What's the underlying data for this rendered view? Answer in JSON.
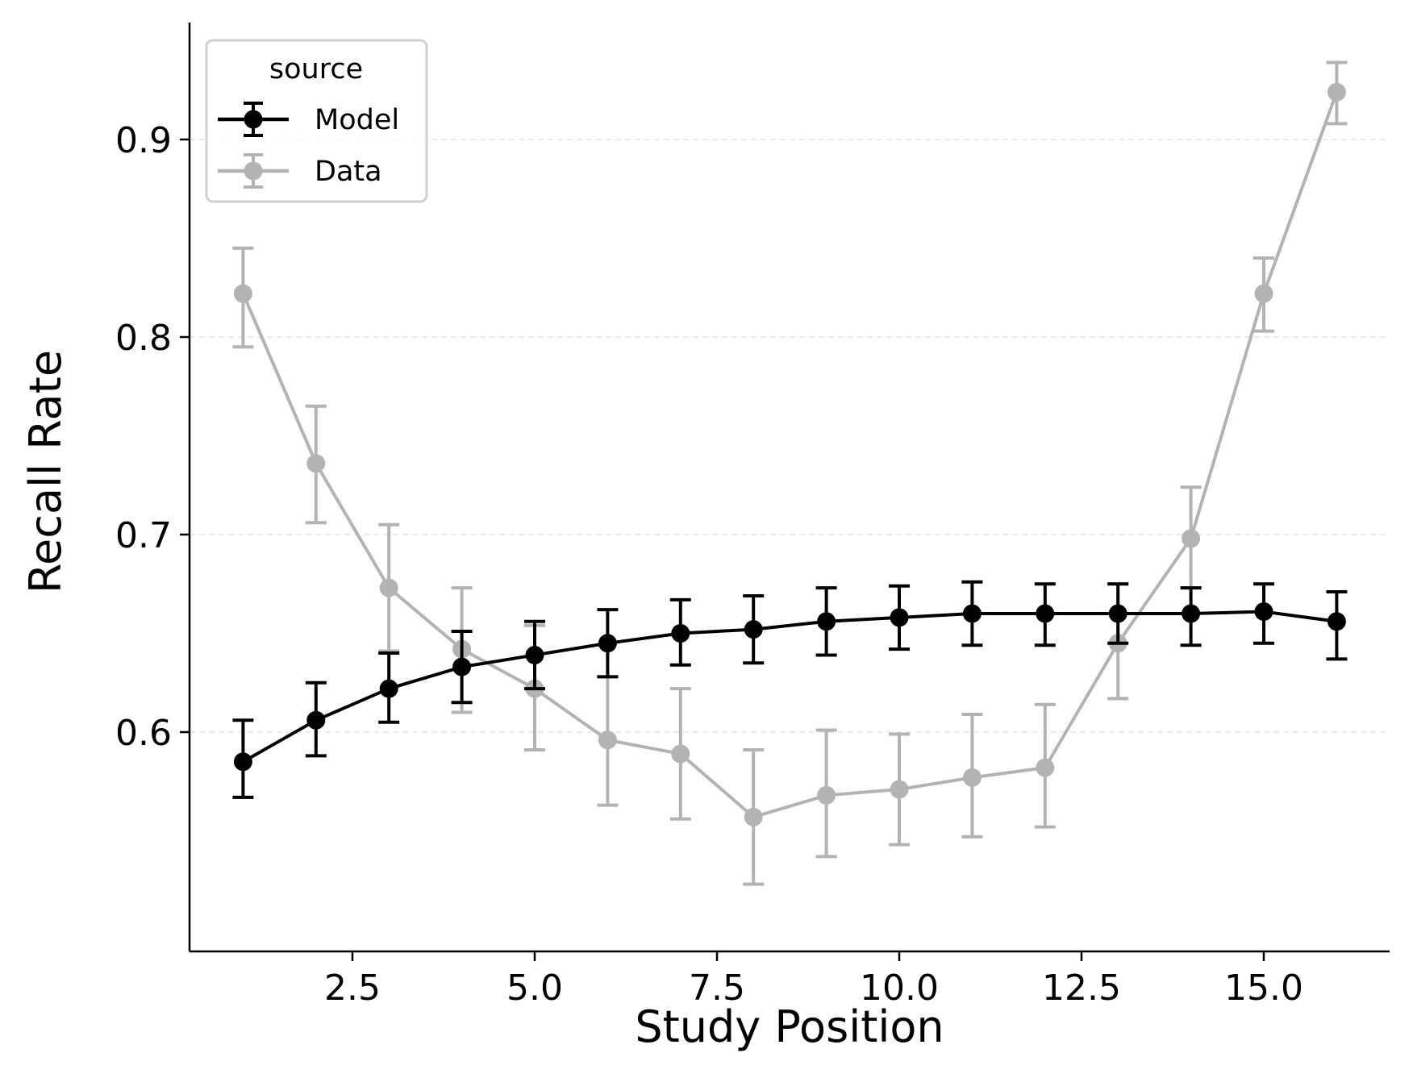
{
  "chart_data": {
    "type": "line",
    "title": "",
    "xlabel": "Study Position",
    "ylabel": "Recall Rate",
    "xlim": [
      0.4,
      16.8
    ],
    "ylim": [
      0.505,
      0.96
    ],
    "x_ticks": [
      2.5,
      5.0,
      7.5,
      10.0,
      12.5,
      15.0
    ],
    "x_tick_labels": [
      "2.5",
      "5.0",
      "7.5",
      "10.0",
      "12.5",
      "15.0"
    ],
    "y_ticks": [
      0.6,
      0.7,
      0.8,
      0.9
    ],
    "y_tick_labels": [
      "0.6",
      "0.7",
      "0.8",
      "0.9"
    ],
    "grid": "y-dashed",
    "legend": {
      "title": "source",
      "placement": "top-left"
    },
    "x": [
      1,
      2,
      3,
      4,
      5,
      6,
      7,
      8,
      9,
      10,
      11,
      12,
      13,
      14,
      15,
      16
    ],
    "series": [
      {
        "name": "Model",
        "color": "#000000",
        "values": [
          0.585,
          0.606,
          0.622,
          0.633,
          0.639,
          0.645,
          0.65,
          0.652,
          0.656,
          0.658,
          0.66,
          0.66,
          0.66,
          0.66,
          0.661,
          0.656
        ],
        "err_low": [
          0.567,
          0.588,
          0.605,
          0.615,
          0.622,
          0.628,
          0.634,
          0.635,
          0.639,
          0.642,
          0.644,
          0.644,
          0.645,
          0.644,
          0.645,
          0.637
        ],
        "err_high": [
          0.606,
          0.625,
          0.64,
          0.651,
          0.656,
          0.662,
          0.667,
          0.669,
          0.673,
          0.674,
          0.676,
          0.675,
          0.675,
          0.673,
          0.675,
          0.671
        ]
      },
      {
        "name": "Data",
        "color": "#b3b3b3",
        "values": [
          0.822,
          0.736,
          0.673,
          0.642,
          0.622,
          0.596,
          0.589,
          0.557,
          0.568,
          0.571,
          0.577,
          0.582,
          0.645,
          0.698,
          0.822,
          0.924
        ],
        "err_low": [
          0.795,
          0.706,
          0.641,
          0.61,
          0.591,
          0.563,
          0.556,
          0.523,
          0.537,
          0.543,
          0.547,
          0.552,
          0.617,
          0.673,
          0.803,
          0.908
        ],
        "err_high": [
          0.845,
          0.765,
          0.705,
          0.673,
          0.654,
          0.628,
          0.622,
          0.591,
          0.601,
          0.599,
          0.609,
          0.614,
          0.675,
          0.724,
          0.84,
          0.939
        ]
      }
    ]
  }
}
